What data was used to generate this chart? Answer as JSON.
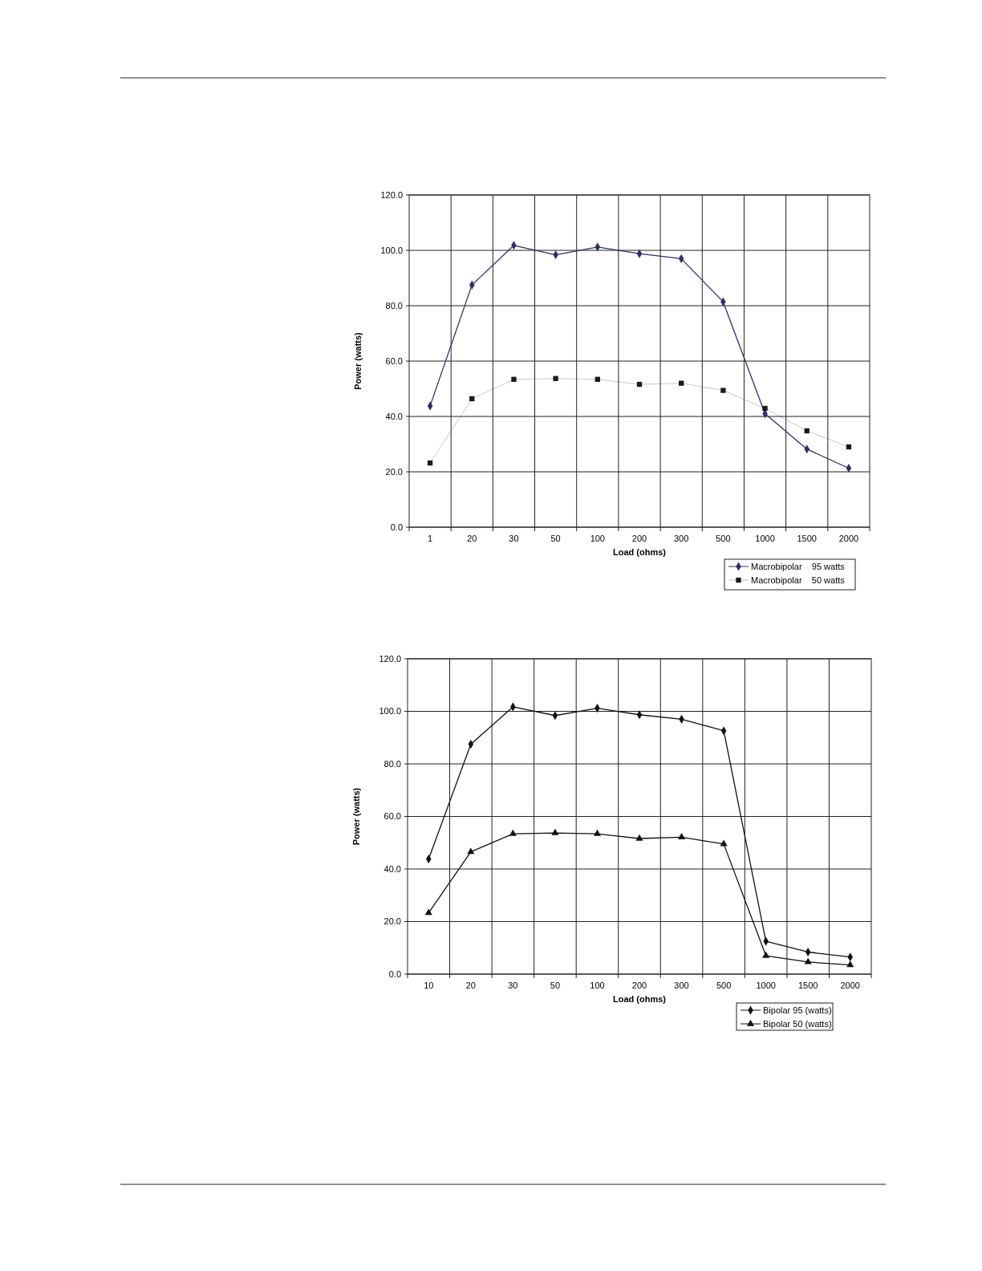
{
  "chart_data": [
    {
      "type": "line",
      "xlabel": "Load (ohms)",
      "ylabel": "Power (watts)",
      "categories": [
        "1",
        "20",
        "30",
        "50",
        "100",
        "200",
        "300",
        "500",
        "1000",
        "1500",
        "2000"
      ],
      "ylim": [
        0,
        120
      ],
      "yticks": [
        {
          "value": 0,
          "label": "0.0"
        },
        {
          "value": 20,
          "label": "20.0"
        },
        {
          "value": 40,
          "label": "40.0"
        },
        {
          "value": 60,
          "label": "60.0"
        },
        {
          "value": 80,
          "label": "80.0"
        },
        {
          "value": 100,
          "label": "100.0"
        },
        {
          "value": 120,
          "label": "120.0"
        }
      ],
      "grid": true,
      "legend": "bottom right",
      "series": [
        {
          "name": "Macrobipolar    95 watts",
          "color": "#2e2e6b",
          "marker": "diamond",
          "line_style": "solid",
          "values": [
            43.8,
            87.5,
            101.8,
            98.4,
            101.2,
            98.8,
            97.0,
            81.4,
            41.0,
            28.2,
            21.3
          ]
        },
        {
          "name": "Macrobipolar    50 watts",
          "color": "#1a1a1a",
          "marker": "square",
          "line_style": "solid",
          "values": [
            23.2,
            46.4,
            53.4,
            53.7,
            53.4,
            51.6,
            52.0,
            49.4,
            42.9,
            34.8,
            29.0
          ]
        }
      ]
    },
    {
      "type": "line",
      "xlabel": "Load (ohms)",
      "ylabel": "Power (watts)",
      "categories": [
        "10",
        "20",
        "30",
        "50",
        "100",
        "200",
        "300",
        "500",
        "1000",
        "1500",
        "2000"
      ],
      "ylim": [
        0,
        120
      ],
      "yticks": [
        {
          "value": 0,
          "label": "0.0"
        },
        {
          "value": 20,
          "label": "20.0"
        },
        {
          "value": 40,
          "label": "40.0"
        },
        {
          "value": 60,
          "label": "60.0"
        },
        {
          "value": 80,
          "label": "80.0"
        },
        {
          "value": 100,
          "label": "100.0"
        },
        {
          "value": 120,
          "label": "120.0"
        }
      ],
      "grid": true,
      "legend": "bottom right",
      "series": [
        {
          "name": "Bipolar 95 (watts)",
          "color": "#111111",
          "marker": "diamond",
          "line_style": "solid",
          "values": [
            43.8,
            87.5,
            101.7,
            98.4,
            101.2,
            98.7,
            97.0,
            92.6,
            12.5,
            8.4,
            6.5
          ]
        },
        {
          "name": "Bipolar 50 (watts)",
          "color": "#111111",
          "marker": "triangle",
          "line_style": "solid",
          "values": [
            23.3,
            46.5,
            53.4,
            53.7,
            53.4,
            51.6,
            52.1,
            49.5,
            7.0,
            4.6,
            3.5
          ]
        }
      ]
    }
  ]
}
